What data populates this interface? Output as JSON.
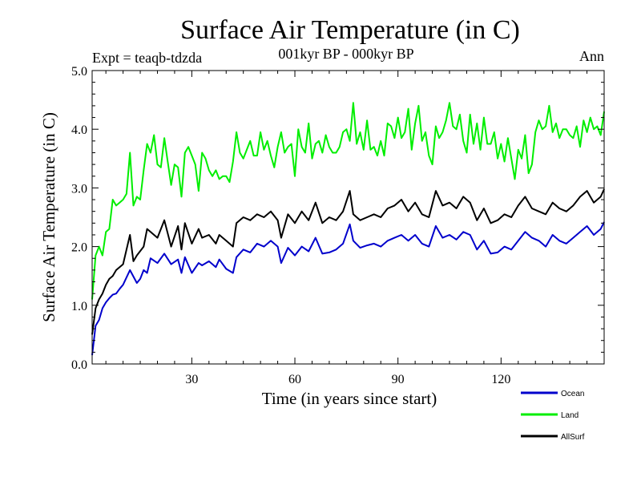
{
  "chart_data": {
    "type": "line",
    "title": "Surface Air Temperature (in C)",
    "subtitle": "001kyr BP - 000kyr BP",
    "experiment": "Expt = teaqb-tdzda",
    "season": "Ann",
    "xlabel": "Time (in years since start)",
    "ylabel": "Surface Air Temperature (in C)",
    "xlim": [
      1,
      150
    ],
    "ylim": [
      0.0,
      5.0
    ],
    "xticks": [
      30,
      60,
      90,
      120
    ],
    "yticks": [
      0.0,
      1.0,
      2.0,
      3.0,
      4.0,
      5.0
    ],
    "ytick_labels": [
      "0.0",
      "1.0",
      "2.0",
      "3.0",
      "4.0",
      "5.0"
    ],
    "grid": false,
    "legend_position": "bottom-right",
    "series": [
      {
        "name": "Ocean",
        "color": "#0000cc",
        "x": [
          1,
          2,
          3,
          4,
          5,
          6,
          7,
          8,
          9,
          10,
          12,
          14,
          15,
          16,
          17,
          18,
          20,
          22,
          24,
          26,
          27,
          28,
          30,
          32,
          33,
          35,
          37,
          38,
          40,
          42,
          43,
          45,
          47,
          49,
          51,
          53,
          55,
          56,
          58,
          60,
          62,
          64,
          66,
          68,
          70,
          72,
          74,
          76,
          77,
          79,
          81,
          83,
          85,
          87,
          89,
          91,
          93,
          95,
          97,
          99,
          101,
          103,
          105,
          107,
          109,
          111,
          113,
          115,
          117,
          119,
          121,
          123,
          125,
          127,
          129,
          131,
          133,
          135,
          137,
          139,
          141,
          143,
          145,
          147,
          149,
          150
        ],
        "values": [
          0.15,
          0.65,
          0.75,
          0.95,
          1.05,
          1.12,
          1.18,
          1.2,
          1.28,
          1.35,
          1.6,
          1.38,
          1.45,
          1.6,
          1.55,
          1.8,
          1.72,
          1.88,
          1.7,
          1.78,
          1.55,
          1.82,
          1.55,
          1.72,
          1.68,
          1.75,
          1.65,
          1.78,
          1.62,
          1.55,
          1.82,
          1.95,
          1.9,
          2.05,
          2.0,
          2.1,
          2.0,
          1.72,
          1.98,
          1.85,
          2.0,
          1.92,
          2.15,
          1.88,
          1.9,
          1.95,
          2.05,
          2.38,
          2.1,
          1.98,
          2.02,
          2.05,
          2.0,
          2.1,
          2.15,
          2.2,
          2.1,
          2.2,
          2.05,
          2.0,
          2.35,
          2.15,
          2.2,
          2.12,
          2.25,
          2.2,
          1.95,
          2.1,
          1.88,
          1.9,
          2.0,
          1.95,
          2.1,
          2.25,
          2.15,
          2.1,
          2.0,
          2.2,
          2.1,
          2.05,
          2.15,
          2.25,
          2.35,
          2.2,
          2.3,
          2.42
        ]
      },
      {
        "name": "Land",
        "color": "#00ee00",
        "x": [
          1,
          2,
          3,
          4,
          5,
          6,
          7,
          8,
          9,
          10,
          11,
          12,
          13,
          14,
          15,
          16,
          17,
          18,
          19,
          20,
          21,
          22,
          23,
          24,
          25,
          26,
          27,
          28,
          29,
          30,
          31,
          32,
          33,
          34,
          35,
          36,
          37,
          38,
          39,
          40,
          41,
          42,
          43,
          44,
          45,
          46,
          47,
          48,
          49,
          50,
          51,
          52,
          53,
          54,
          55,
          56,
          57,
          58,
          59,
          60,
          61,
          62,
          63,
          64,
          65,
          66,
          67,
          68,
          69,
          70,
          71,
          72,
          73,
          74,
          75,
          76,
          77,
          78,
          79,
          80,
          81,
          82,
          83,
          84,
          85,
          86,
          87,
          88,
          89,
          90,
          91,
          92,
          93,
          94,
          95,
          96,
          97,
          98,
          99,
          100,
          101,
          102,
          103,
          104,
          105,
          106,
          107,
          108,
          109,
          110,
          111,
          112,
          113,
          114,
          115,
          116,
          117,
          118,
          119,
          120,
          121,
          122,
          123,
          124,
          125,
          126,
          127,
          128,
          129,
          130,
          131,
          132,
          133,
          134,
          135,
          136,
          137,
          138,
          139,
          140,
          141,
          142,
          143,
          144,
          145,
          146,
          147,
          148,
          149,
          150
        ],
        "values": [
          1.1,
          1.85,
          2.0,
          1.85,
          2.25,
          2.3,
          2.8,
          2.7,
          2.75,
          2.8,
          2.9,
          3.6,
          2.7,
          2.85,
          2.8,
          3.3,
          3.75,
          3.6,
          3.9,
          3.4,
          3.35,
          3.85,
          3.45,
          3.05,
          3.4,
          3.35,
          2.85,
          3.6,
          3.7,
          3.55,
          3.4,
          2.95,
          3.6,
          3.5,
          3.3,
          3.2,
          3.3,
          3.15,
          3.2,
          3.2,
          3.1,
          3.45,
          3.95,
          3.6,
          3.5,
          3.65,
          3.8,
          3.55,
          3.55,
          3.95,
          3.65,
          3.8,
          3.55,
          3.35,
          3.7,
          3.95,
          3.6,
          3.7,
          3.75,
          3.2,
          4.0,
          3.7,
          3.6,
          4.1,
          3.5,
          3.75,
          3.8,
          3.6,
          3.9,
          3.7,
          3.6,
          3.6,
          3.7,
          3.95,
          4.0,
          3.8,
          4.45,
          3.75,
          3.95,
          3.65,
          4.15,
          3.65,
          3.7,
          3.55,
          3.8,
          3.55,
          4.1,
          4.05,
          3.85,
          4.2,
          3.85,
          3.95,
          4.35,
          3.65,
          4.1,
          4.4,
          3.8,
          3.95,
          3.55,
          3.4,
          4.05,
          3.85,
          3.95,
          4.15,
          4.45,
          4.05,
          4.0,
          4.25,
          3.8,
          3.6,
          4.25,
          3.75,
          4.1,
          3.65,
          4.2,
          3.75,
          3.75,
          3.95,
          3.5,
          3.75,
          3.45,
          3.85,
          3.5,
          3.15,
          3.65,
          3.5,
          3.9,
          3.25,
          3.4,
          3.95,
          4.15,
          4.0,
          4.05,
          4.4,
          3.95,
          4.1,
          3.85,
          4.0,
          4.0,
          3.9,
          3.85,
          4.05,
          3.7,
          4.15,
          3.95,
          4.2,
          4.0,
          4.05,
          3.9,
          4.3
        ]
      },
      {
        "name": "AllSurf",
        "color": "#000000",
        "x": [
          1,
          2,
          3,
          4,
          5,
          6,
          7,
          8,
          9,
          10,
          12,
          13,
          14,
          16,
          17,
          18,
          20,
          22,
          24,
          26,
          27,
          28,
          30,
          32,
          33,
          35,
          37,
          38,
          40,
          42,
          43,
          45,
          47,
          49,
          51,
          53,
          55,
          56,
          58,
          60,
          62,
          64,
          66,
          68,
          70,
          72,
          74,
          76,
          77,
          79,
          81,
          83,
          85,
          87,
          89,
          91,
          93,
          95,
          97,
          99,
          101,
          103,
          105,
          107,
          109,
          111,
          113,
          115,
          117,
          119,
          121,
          123,
          125,
          127,
          129,
          131,
          133,
          135,
          137,
          139,
          141,
          143,
          145,
          147,
          149,
          150
        ],
        "values": [
          0.5,
          0.95,
          1.1,
          1.2,
          1.35,
          1.45,
          1.5,
          1.6,
          1.65,
          1.7,
          2.2,
          1.75,
          1.85,
          2.0,
          2.3,
          2.25,
          2.15,
          2.45,
          2.0,
          2.35,
          1.95,
          2.4,
          2.05,
          2.3,
          2.15,
          2.2,
          2.05,
          2.2,
          2.1,
          2.0,
          2.4,
          2.5,
          2.45,
          2.55,
          2.5,
          2.6,
          2.45,
          2.15,
          2.55,
          2.4,
          2.6,
          2.45,
          2.75,
          2.4,
          2.5,
          2.45,
          2.6,
          2.95,
          2.55,
          2.45,
          2.5,
          2.55,
          2.5,
          2.65,
          2.7,
          2.8,
          2.6,
          2.75,
          2.55,
          2.5,
          2.95,
          2.7,
          2.75,
          2.65,
          2.85,
          2.75,
          2.45,
          2.65,
          2.4,
          2.45,
          2.55,
          2.5,
          2.7,
          2.85,
          2.65,
          2.6,
          2.55,
          2.75,
          2.65,
          2.6,
          2.7,
          2.85,
          2.95,
          2.75,
          2.85,
          2.98
        ]
      }
    ]
  }
}
